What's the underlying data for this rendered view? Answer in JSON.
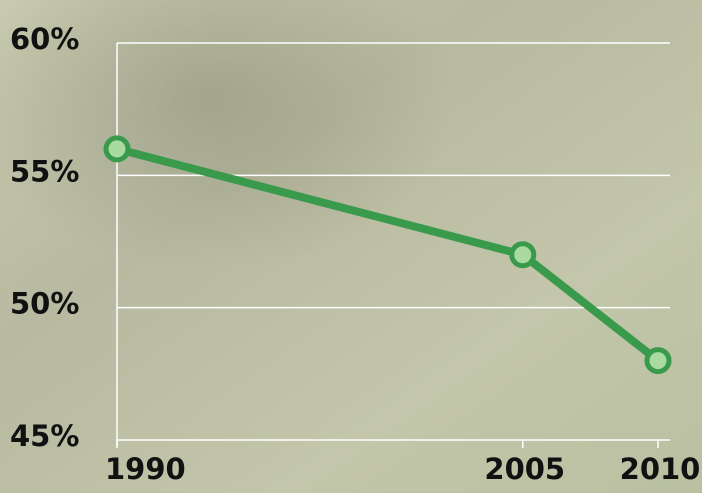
{
  "chart_data": {
    "type": "line",
    "x": [
      1990,
      2005,
      2010
    ],
    "values": [
      56,
      52,
      48
    ],
    "color": "#3a9a4c",
    "marker_color": "#a9dba0",
    "xlim": [
      1990,
      2010
    ],
    "xticks": [
      1990,
      2005,
      2010
    ],
    "ylim": [
      45,
      60
    ],
    "yticks": [
      {
        "value": 45,
        "label": "45%"
      },
      {
        "value": 50,
        "label": "50%"
      },
      {
        "value": 55,
        "label": "55%"
      },
      {
        "value": 60,
        "label": "60%"
      }
    ],
    "grid": true
  }
}
